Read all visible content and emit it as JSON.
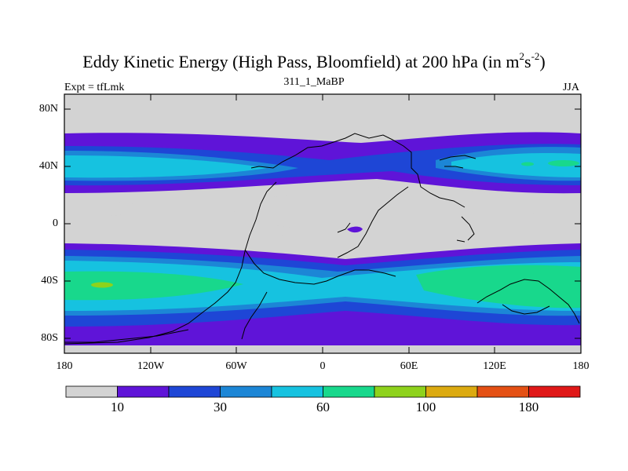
{
  "title": {
    "main": "Eddy Kinetic Energy (High Pass, Bloomfield) at 200 hPa (in m",
    "sup1": "2",
    "s": "s",
    "sup2": "-2",
    "close": ")"
  },
  "left_label": "Expt = tfLmk",
  "center_label": "311_1_MaBP",
  "right_label": "JJA",
  "y_ticks": [
    "80N",
    "40N",
    "0",
    "40S",
    "80S"
  ],
  "x_ticks": [
    "180",
    "120W",
    "60W",
    "0",
    "60E",
    "120E",
    "180"
  ],
  "colorbar": {
    "colors": [
      "#d3d3d3",
      "#5f14d8",
      "#1e46d6",
      "#1c86d6",
      "#16c2e0",
      "#18d88c",
      "#8ed21c",
      "#dcaa10",
      "#e45014",
      "#e01818"
    ],
    "labels": [
      {
        "text": "10",
        "boundary": 1
      },
      {
        "text": "30",
        "boundary": 3
      },
      {
        "text": "60",
        "boundary": 5
      },
      {
        "text": "100",
        "boundary": 7
      },
      {
        "text": "180",
        "boundary": 9
      }
    ]
  },
  "field_colors": {
    "grey": "#d3d3d3",
    "purple": "#5f14d8",
    "blue": "#1e46d6",
    "mid_blue": "#1c86d6",
    "cyan": "#16c2e0",
    "green": "#18d88c"
  }
}
